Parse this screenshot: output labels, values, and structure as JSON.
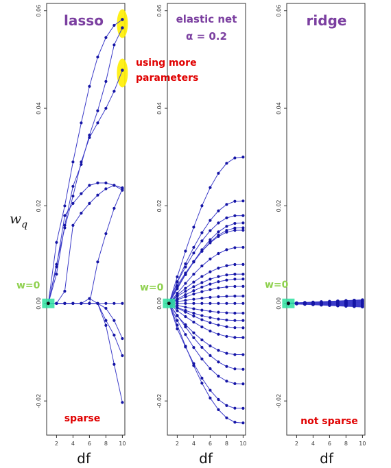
{
  "y_label": "w",
  "y_label_sub": "q",
  "chart_data": [
    {
      "type": "line",
      "title": "lasso",
      "xlabel": "df",
      "xlim": [
        0.8,
        10.3
      ],
      "ylim": [
        -0.027,
        0.0615
      ],
      "x_ticks": [
        2,
        4,
        6,
        8,
        10
      ],
      "y_ticks": [
        -0.02,
        0,
        0.02,
        0.04,
        0.06
      ],
      "y_tick_labels": [
        "-0.02",
        "0.00",
        "0.02",
        "0.04",
        "0.06"
      ],
      "zero_label": "w=0",
      "annotations": [
        "sparse",
        "using more",
        "parameters"
      ],
      "series": [
        {
          "x": [
            1,
            2,
            3,
            4,
            5,
            6,
            7,
            8,
            9,
            10
          ],
          "y": [
            0,
            0.0125,
            0.02,
            0.029,
            0.037,
            0.0445,
            0.0505,
            0.0545,
            0.057,
            0.0582
          ]
        },
        {
          "x": [
            1,
            2,
            3,
            4,
            5,
            6,
            7,
            8,
            9,
            10
          ],
          "y": [
            0,
            0.006,
            0.016,
            0.024,
            0.0285,
            0.0345,
            0.0395,
            0.0455,
            0.053,
            0.0565
          ]
        },
        {
          "x": [
            1,
            2,
            3,
            4,
            5,
            6,
            7,
            8,
            9,
            10
          ],
          "y": [
            0,
            0.008,
            0.0155,
            0.022,
            0.029,
            0.034,
            0.037,
            0.04,
            0.0435,
            0.0478
          ]
        },
        {
          "x": [
            1,
            2,
            3,
            4,
            5,
            6,
            7,
            8,
            9,
            10
          ],
          "y": [
            0,
            0.0075,
            0.018,
            0.0205,
            0.0225,
            0.0242,
            0.0247,
            0.0247,
            0.0242,
            0.0232
          ]
        },
        {
          "x": [
            1,
            2,
            3,
            4,
            5,
            6,
            7,
            8,
            9,
            10
          ],
          "y": [
            0,
            0,
            0.0025,
            0.016,
            0.0185,
            0.0205,
            0.0222,
            0.0235,
            0.0242,
            0.0237
          ]
        },
        {
          "x": [
            1,
            2,
            3,
            4,
            5,
            6,
            7,
            8,
            9,
            10
          ],
          "y": [
            0,
            0,
            0,
            0,
            0,
            0,
            0.0085,
            0.0143,
            0.0195,
            0.0235
          ]
        },
        {
          "x": [
            1,
            2,
            3,
            4,
            5,
            6,
            7,
            8,
            9,
            10
          ],
          "y": [
            0,
            0,
            0,
            0,
            0,
            0.001,
            0,
            -0.001,
            -0.0035,
            -0.0072
          ]
        },
        {
          "x": [
            1,
            2,
            3,
            4,
            5,
            6,
            7,
            8,
            9,
            10
          ],
          "y": [
            0,
            0,
            0,
            0,
            0,
            0,
            0,
            -0.0035,
            -0.0065,
            -0.0107
          ]
        },
        {
          "x": [
            1,
            2,
            3,
            4,
            5,
            6,
            7,
            8,
            9,
            10
          ],
          "y": [
            0,
            0,
            0,
            0,
            0,
            0,
            0,
            -0.0045,
            -0.0125,
            -0.0203
          ]
        },
        {
          "x": [
            1,
            2,
            3,
            4,
            5,
            6,
            7,
            8,
            9,
            10
          ],
          "y": [
            0,
            0,
            0,
            0,
            0,
            0,
            0,
            0,
            0,
            0
          ]
        }
      ]
    },
    {
      "type": "line",
      "title": "elastic net",
      "subtitle": "α = 0.2",
      "xlabel": "df",
      "xlim": [
        0.8,
        10.3
      ],
      "ylim": [
        -0.027,
        0.0615
      ],
      "x_ticks": [
        2,
        4,
        6,
        8,
        10
      ],
      "y_ticks": [
        -0.02,
        0,
        0.02,
        0.04,
        0.06
      ],
      "y_tick_labels": [
        "-0.02",
        "0.00",
        "0.02",
        "0.04",
        "0.06"
      ],
      "zero_label": "w=0",
      "final_values": [
        0.03,
        0.021,
        0.018,
        0.0165,
        0.0155,
        0.015,
        0.0115,
        0.008,
        0.006,
        0.005,
        0.0035,
        0.0015,
        0,
        -0.002,
        -0.0035,
        -0.005,
        -0.007,
        -0.0105,
        -0.0135,
        -0.0165,
        -0.0215,
        -0.0245
      ]
    },
    {
      "type": "line",
      "title": "ridge",
      "xlabel": "df",
      "xlim": [
        0.8,
        10.3
      ],
      "ylim": [
        -0.027,
        0.0615
      ],
      "x_ticks": [
        2,
        4,
        6,
        8,
        10
      ],
      "y_ticks": [
        -0.02,
        0,
        0.02,
        0.04,
        0.06
      ],
      "y_tick_labels": [
        "-0.02",
        "0.00",
        "0.02",
        "0.04",
        "0.06"
      ],
      "zero_label": "w=0",
      "annotations": [
        "not sparse"
      ],
      "final_values": [
        0.0007,
        0.0005,
        0.0003,
        0.0001,
        -0.0001,
        -0.0003,
        -0.0005,
        -0.0007
      ]
    }
  ],
  "colors": {
    "line": "#3b3bc8",
    "point": "#1515a5",
    "title": "#7b3fa0",
    "note": "#e00000",
    "zero_label": "#8fd14f",
    "zero_box": "#2ee0a0",
    "highlight": "#ffee00"
  }
}
